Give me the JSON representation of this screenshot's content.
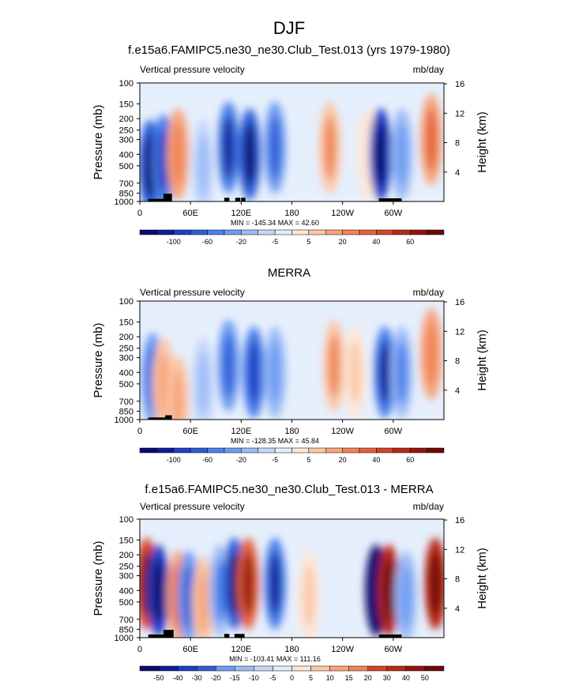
{
  "figure": {
    "title": "DJF"
  },
  "colors": {
    "blues": [
      "#0a0a6e",
      "#0e1e9a",
      "#1f3fc4",
      "#2e5ed8",
      "#4a80ea",
      "#6e9cf2",
      "#9bbcf6",
      "#c4d6fb",
      "#e2ecfd"
    ],
    "reds": [
      "#fde6d8",
      "#fbc8a8",
      "#f7a47c",
      "#f08456",
      "#e4643a",
      "#d24428",
      "#b82818",
      "#961410",
      "#6e0808"
    ],
    "neutral": "#ffffff",
    "topo": "#000000"
  },
  "chart_data": [
    {
      "type": "heatmap",
      "subtitle": "f.e15a6.FAMIPC5.ne30_ne30.Club_Test.013 (yrs 1979-1980)",
      "left_label": "Vertical pressure velocity",
      "right_label": "mb/day",
      "ylabel": "Pressure (mb)",
      "ylabel_right": "Height (km)",
      "y_ticks": [
        100,
        150,
        200,
        250,
        300,
        400,
        500,
        700,
        850,
        1000
      ],
      "y_ticks_right": [
        16,
        12,
        8,
        4
      ],
      "x_ticks": [
        "0",
        "60E",
        "120E",
        "180",
        "120W",
        "60W"
      ],
      "xlim": [
        0,
        360
      ],
      "ylim": [
        1000,
        100
      ],
      "stats": "MIN = -145.34  MAX =  42.60",
      "colorbar_labels": [
        "-100",
        "-60",
        "-20",
        "-5",
        "5",
        "20",
        "40",
        "60"
      ],
      "features": [
        {
          "lon": 12,
          "p": 500,
          "value": -60
        },
        {
          "lon": 28,
          "p": 450,
          "value": -45
        },
        {
          "lon": 45,
          "p": 400,
          "value": 25
        },
        {
          "lon": 75,
          "p": 500,
          "value": -15
        },
        {
          "lon": 105,
          "p": 350,
          "value": -50
        },
        {
          "lon": 130,
          "p": 400,
          "value": -60
        },
        {
          "lon": 160,
          "p": 350,
          "value": -40
        },
        {
          "lon": 225,
          "p": 350,
          "value": 22
        },
        {
          "lon": 270,
          "p": 400,
          "value": 5
        },
        {
          "lon": 285,
          "p": 400,
          "value": -70
        },
        {
          "lon": 310,
          "p": 400,
          "value": -25
        },
        {
          "lon": 345,
          "p": 300,
          "value": 28
        }
      ],
      "topography": [
        {
          "lon0": 10,
          "lon1": 30,
          "p": 950
        },
        {
          "lon0": 28,
          "lon1": 38,
          "p": 860
        },
        {
          "lon0": 100,
          "lon1": 106,
          "p": 930
        },
        {
          "lon0": 113,
          "lon1": 119,
          "p": 930
        },
        {
          "lon0": 120,
          "lon1": 125,
          "p": 930
        },
        {
          "lon0": 283,
          "lon1": 310,
          "p": 940
        }
      ]
    },
    {
      "type": "heatmap",
      "subtitle": "MERRA",
      "left_label": "Vertical pressure velocity",
      "right_label": "mb/day",
      "ylabel": "Pressure (mb)",
      "ylabel_right": "Height (km)",
      "y_ticks": [
        100,
        150,
        200,
        250,
        300,
        400,
        500,
        700,
        850,
        1000
      ],
      "y_ticks_right": [
        16,
        12,
        8,
        4
      ],
      "x_ticks": [
        "0",
        "60E",
        "120E",
        "180",
        "120W",
        "60W"
      ],
      "xlim": [
        0,
        360
      ],
      "ylim": [
        1000,
        100
      ],
      "stats": "MIN = -128.35  MAX =  45.84",
      "colorbar_labels": [
        "-100",
        "-60",
        "-20",
        "-5",
        "5",
        "20",
        "40",
        "60"
      ],
      "features": [
        {
          "lon": 15,
          "p": 450,
          "value": -35
        },
        {
          "lon": 28,
          "p": 500,
          "value": 18
        },
        {
          "lon": 45,
          "p": 700,
          "value": 20
        },
        {
          "lon": 75,
          "p": 500,
          "value": -15
        },
        {
          "lon": 105,
          "p": 350,
          "value": -40
        },
        {
          "lon": 135,
          "p": 400,
          "value": -45
        },
        {
          "lon": 160,
          "p": 400,
          "value": -25
        },
        {
          "lon": 230,
          "p": 350,
          "value": 22
        },
        {
          "lon": 255,
          "p": 400,
          "value": 10
        },
        {
          "lon": 290,
          "p": 400,
          "value": -55
        },
        {
          "lon": 310,
          "p": 400,
          "value": -30
        },
        {
          "lon": 345,
          "p": 280,
          "value": 25
        }
      ],
      "topography": [
        {
          "lon0": 10,
          "lon1": 30,
          "p": 960
        },
        {
          "lon0": 30,
          "lon1": 38,
          "p": 920
        }
      ]
    },
    {
      "type": "heatmap",
      "subtitle": "f.e15a6.FAMIPC5.ne30_ne30.Club_Test.013 - MERRA",
      "left_label": "Vertical pressure velocity",
      "right_label": "mb/day",
      "ylabel": "Pressure (mb)",
      "ylabel_right": "Height (km)",
      "y_ticks": [
        100,
        150,
        200,
        250,
        300,
        400,
        500,
        700,
        850,
        1000
      ],
      "y_ticks_right": [
        16,
        12,
        8,
        4
      ],
      "x_ticks": [
        "0",
        "60E",
        "120E",
        "180",
        "120W",
        "60W"
      ],
      "xlim": [
        0,
        360
      ],
      "ylim": [
        1000,
        100
      ],
      "stats": "MIN = -103.41  MAX = 111.16",
      "colorbar_labels": [
        "-50",
        "-40",
        "-30",
        "-20",
        "-15",
        "-10",
        "-5",
        "0",
        "5",
        "10",
        "15",
        "20",
        "30",
        "40",
        "50"
      ],
      "features": [
        {
          "lon": 8,
          "p": 350,
          "value": 30
        },
        {
          "lon": 22,
          "p": 400,
          "value": -35
        },
        {
          "lon": 45,
          "p": 450,
          "value": 15
        },
        {
          "lon": 58,
          "p": 450,
          "value": -20
        },
        {
          "lon": 75,
          "p": 500,
          "value": 10
        },
        {
          "lon": 95,
          "p": 400,
          "value": -15
        },
        {
          "lon": 112,
          "p": 350,
          "value": -30
        },
        {
          "lon": 128,
          "p": 350,
          "value": 25
        },
        {
          "lon": 160,
          "p": 350,
          "value": -25
        },
        {
          "lon": 200,
          "p": 450,
          "value": 5
        },
        {
          "lon": 280,
          "p": 400,
          "value": -45
        },
        {
          "lon": 295,
          "p": 400,
          "value": 35
        },
        {
          "lon": 315,
          "p": 450,
          "value": -12
        },
        {
          "lon": 350,
          "p": 350,
          "value": 35
        }
      ],
      "topography": [
        {
          "lon0": 10,
          "lon1": 32,
          "p": 940
        },
        {
          "lon0": 28,
          "lon1": 40,
          "p": 860
        },
        {
          "lon0": 100,
          "lon1": 106,
          "p": 930
        },
        {
          "lon0": 112,
          "lon1": 124,
          "p": 930
        },
        {
          "lon0": 283,
          "lon1": 310,
          "p": 940
        }
      ]
    }
  ]
}
